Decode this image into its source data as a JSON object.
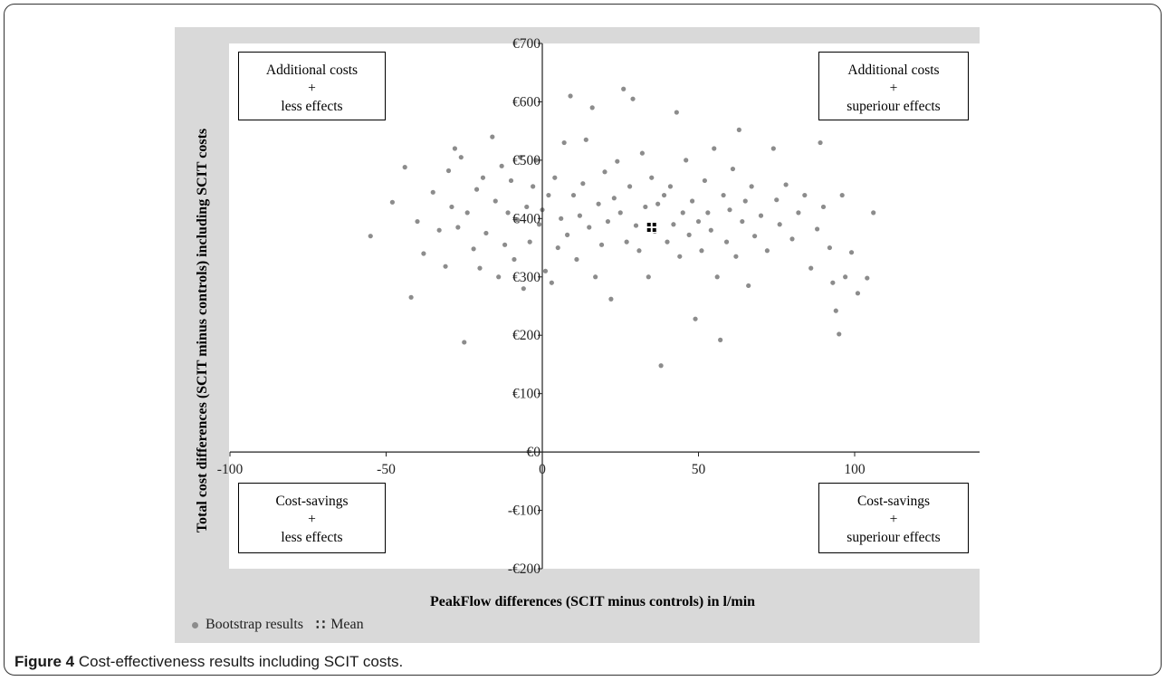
{
  "caption": {
    "label": "Figure 4",
    "text": " Cost-effectiveness results including SCIT costs."
  },
  "quadrants": {
    "top_left": [
      "Additional costs",
      "+",
      "less effects"
    ],
    "top_right": [
      "Additional costs",
      "+",
      "superiour effects"
    ],
    "bottom_left": [
      "Cost-savings",
      "+",
      "less effects"
    ],
    "bottom_right": [
      "Cost-savings",
      "+",
      "superiour effects"
    ]
  },
  "legend": {
    "bootstrap": "Bootstrap results",
    "mean": "Mean"
  },
  "colors": {
    "points": "#8c8c8c",
    "mean": "#000000",
    "plot_area": "#ffffff",
    "figure_background": "#d9d9d9"
  },
  "chart_data": {
    "type": "scatter",
    "xlabel": "PeakFlow differences (SCIT minus controls) in l/min",
    "ylabel": "Total cost differences (SCIT minus controls)  including SCIT costs",
    "xlim": [
      -100,
      140
    ],
    "ylim": [
      -200,
      700
    ],
    "x_ticks": [
      -100,
      -50,
      0,
      50,
      100
    ],
    "x_tick_labels": [
      "-100",
      "-50",
      "0",
      "50",
      "100"
    ],
    "y_ticks": [
      -200,
      -100,
      0,
      100,
      200,
      300,
      400,
      500,
      600,
      700
    ],
    "y_tick_labels": [
      "-€200",
      "-€100",
      "€0",
      "€100",
      "€200",
      "€300",
      "€400",
      "€500",
      "€600",
      "€700"
    ],
    "grid": false,
    "legend_position": "bottom-left",
    "series": [
      {
        "name": "Bootstrap results",
        "marker": "circle",
        "points": [
          [
            -55,
            370
          ],
          [
            -48,
            428
          ],
          [
            -44,
            488
          ],
          [
            -42,
            265
          ],
          [
            -40,
            395
          ],
          [
            -38,
            340
          ],
          [
            -35,
            445
          ],
          [
            -33,
            380
          ],
          [
            -31,
            318
          ],
          [
            -30,
            482
          ],
          [
            -29,
            420
          ],
          [
            -28,
            520
          ],
          [
            -27,
            385
          ],
          [
            -26,
            505
          ],
          [
            -25,
            188
          ],
          [
            -24,
            410
          ],
          [
            -22,
            348
          ],
          [
            -21,
            450
          ],
          [
            -20,
            315
          ],
          [
            -19,
            470
          ],
          [
            -18,
            375
          ],
          [
            -16,
            540
          ],
          [
            -15,
            430
          ],
          [
            -14,
            300
          ],
          [
            -13,
            490
          ],
          [
            -12,
            355
          ],
          [
            -11,
            410
          ],
          [
            -10,
            465
          ],
          [
            -9,
            330
          ],
          [
            -8,
            398
          ],
          [
            -7,
            505
          ],
          [
            -6,
            280
          ],
          [
            -5,
            420
          ],
          [
            -4,
            360
          ],
          [
            -3,
            455
          ],
          [
            -2,
            500
          ],
          [
            -1,
            390
          ],
          [
            0,
            415
          ],
          [
            1,
            310
          ],
          [
            2,
            440
          ],
          [
            3,
            290
          ],
          [
            4,
            470
          ],
          [
            5,
            350
          ],
          [
            6,
            400
          ],
          [
            7,
            530
          ],
          [
            8,
            372
          ],
          [
            9,
            610
          ],
          [
            10,
            440
          ],
          [
            11,
            330
          ],
          [
            12,
            405
          ],
          [
            13,
            460
          ],
          [
            14,
            535
          ],
          [
            15,
            385
          ],
          [
            16,
            590
          ],
          [
            17,
            300
          ],
          [
            18,
            425
          ],
          [
            19,
            355
          ],
          [
            20,
            480
          ],
          [
            21,
            395
          ],
          [
            22,
            262
          ],
          [
            23,
            435
          ],
          [
            24,
            498
          ],
          [
            25,
            410
          ],
          [
            26,
            622
          ],
          [
            27,
            360
          ],
          [
            28,
            455
          ],
          [
            29,
            605
          ],
          [
            30,
            388
          ],
          [
            31,
            345
          ],
          [
            32,
            512
          ],
          [
            33,
            420
          ],
          [
            34,
            300
          ],
          [
            35,
            470
          ],
          [
            36,
            378
          ],
          [
            37,
            425
          ],
          [
            38,
            148
          ],
          [
            39,
            440
          ],
          [
            40,
            360
          ],
          [
            41,
            455
          ],
          [
            42,
            390
          ],
          [
            43,
            582
          ],
          [
            44,
            335
          ],
          [
            45,
            410
          ],
          [
            46,
            500
          ],
          [
            47,
            372
          ],
          [
            48,
            430
          ],
          [
            49,
            228
          ],
          [
            50,
            395
          ],
          [
            51,
            345
          ],
          [
            52,
            465
          ],
          [
            53,
            410
          ],
          [
            54,
            380
          ],
          [
            55,
            520
          ],
          [
            56,
            300
          ],
          [
            57,
            192
          ],
          [
            58,
            440
          ],
          [
            59,
            360
          ],
          [
            60,
            415
          ],
          [
            61,
            485
          ],
          [
            62,
            335
          ],
          [
            63,
            552
          ],
          [
            64,
            395
          ],
          [
            65,
            430
          ],
          [
            66,
            285
          ],
          [
            67,
            455
          ],
          [
            68,
            370
          ],
          [
            70,
            405
          ],
          [
            72,
            345
          ],
          [
            74,
            520
          ],
          [
            75,
            432
          ],
          [
            76,
            390
          ],
          [
            78,
            458
          ],
          [
            80,
            365
          ],
          [
            82,
            410
          ],
          [
            84,
            440
          ],
          [
            86,
            315
          ],
          [
            88,
            382
          ],
          [
            89,
            530
          ],
          [
            90,
            420
          ],
          [
            92,
            350
          ],
          [
            93,
            290
          ],
          [
            94,
            242
          ],
          [
            95,
            202
          ],
          [
            96,
            440
          ],
          [
            97,
            300
          ],
          [
            99,
            342
          ],
          [
            101,
            272
          ],
          [
            104,
            298
          ],
          [
            106,
            410
          ]
        ]
      },
      {
        "name": "Mean",
        "marker": "square",
        "points": [
          [
            35,
            385
          ]
        ]
      }
    ]
  }
}
